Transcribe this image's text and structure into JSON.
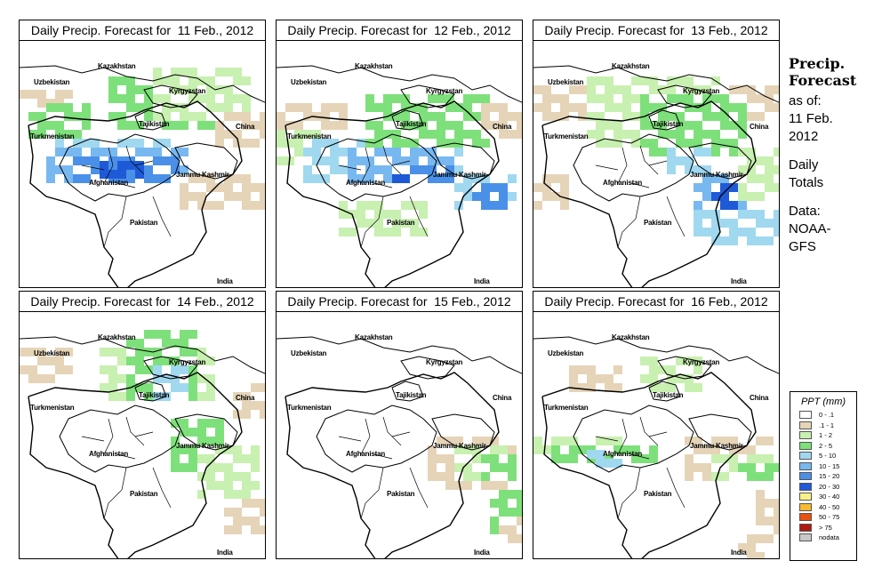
{
  "panels": [
    {
      "title": "Daily Precip. Forecast for  11 Feb., 2012",
      "date": "11 Feb., 2012"
    },
    {
      "title": "Daily Precip. Forecast for  12 Feb., 2012",
      "date": "12 Feb., 2012"
    },
    {
      "title": "Daily Precip. Forecast for  13 Feb., 2012",
      "date": "13 Feb., 2012"
    },
    {
      "title": "Daily Precip. Forecast for  14 Feb., 2012",
      "date": "14 Feb., 2012"
    },
    {
      "title": "Daily Precip. Forecast for  15 Feb., 2012",
      "date": "15 Feb., 2012"
    },
    {
      "title": "Daily Precip. Forecast for  16 Feb., 2012",
      "date": "16 Feb., 2012"
    }
  ],
  "map_labels": {
    "kazakhstan": "Kazakhstan",
    "uzbekistan": "Uzbekistan",
    "kyrgyzstan": "Kyrgyzstan",
    "turkmenistan": "Turkmenistan",
    "tajikistan": "Tajikistan",
    "china": "China",
    "afghanistan": "Afghanistan",
    "jammu_kashmir": "Jammu Kashmir",
    "pakistan": "Pakistan",
    "india": "India"
  },
  "side_info": {
    "title_line1": "Precip.",
    "title_line2": "Forecast",
    "asof_line1": "as of:",
    "asof_line2": "11 Feb.",
    "asof_line3": "2012",
    "daily_line1": "Daily",
    "daily_line2": "Totals",
    "data_line1": "Data:",
    "data_line2": "NOAA-",
    "data_line3": "GFS"
  },
  "legend": {
    "title": "PPT (mm)",
    "items": [
      {
        "label": "0 - .1",
        "color": "#ffffff"
      },
      {
        "label": ".1 - 1",
        "color": "#e6d4b8"
      },
      {
        "label": "1 - 2",
        "color": "#c8f0b0"
      },
      {
        "label": "2 - 5",
        "color": "#7ee07a"
      },
      {
        "label": "5 - 10",
        "color": "#a0d8f0"
      },
      {
        "label": "10 - 15",
        "color": "#78b8f0"
      },
      {
        "label": "15 - 20",
        "color": "#4a90e8"
      },
      {
        "label": "20 - 30",
        "color": "#1e5ad8"
      },
      {
        "label": "30 - 40",
        "color": "#f8f088"
      },
      {
        "label": "40 - 50",
        "color": "#f8b830"
      },
      {
        "label": "50 - 75",
        "color": "#e85010"
      },
      {
        "label": "> 75",
        "color": "#b01810"
      },
      {
        "label": "nodata",
        "color": "#c8c8c8"
      }
    ]
  }
}
